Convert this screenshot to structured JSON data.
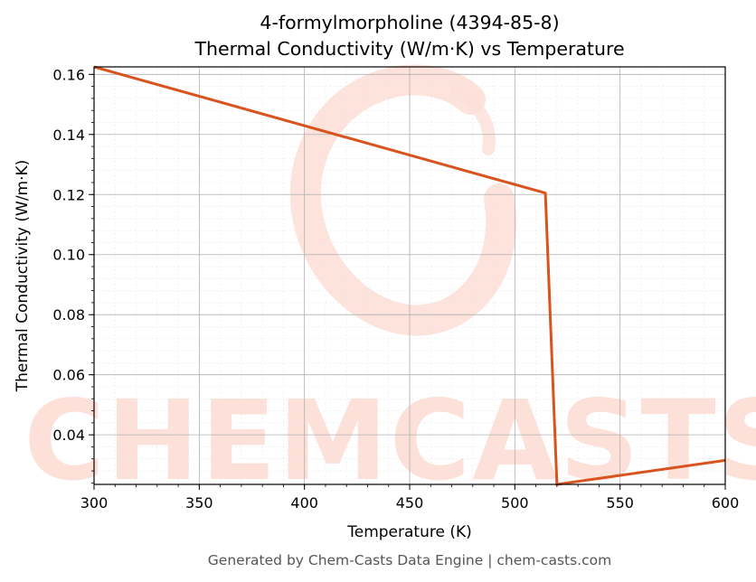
{
  "chart_data": {
    "type": "line",
    "title": "4-formylmorpholine (4394-85-8)",
    "subtitle": "Thermal Conductivity (W/m·K) vs Temperature",
    "xlabel": "Temperature (K)",
    "ylabel": "Thermal Conductivity (W/m·K)",
    "xlim": [
      300,
      600
    ],
    "ylim": [
      0.0235,
      0.1625
    ],
    "x_ticks": [
      300,
      350,
      400,
      450,
      500,
      550,
      600
    ],
    "x_tick_labels": [
      "300",
      "350",
      "400",
      "450",
      "500",
      "550",
      "600"
    ],
    "y_ticks": [
      0.04,
      0.06,
      0.08,
      0.1,
      0.12,
      0.14,
      0.16
    ],
    "y_tick_labels": [
      "0.04",
      "0.06",
      "0.08",
      "0.10",
      "0.12",
      "0.14",
      "0.16"
    ],
    "grid": true,
    "series": [
      {
        "color": "#d9531e",
        "x": [
          300,
          514.5,
          520.0,
          600
        ],
        "y": [
          0.1625,
          0.1205,
          0.0235,
          0.0315
        ]
      }
    ]
  },
  "watermark": {
    "text": "CHEMCASTS",
    "color": "#fde0d8"
  },
  "footer": "Generated by Chem-Casts Data Engine | chem-casts.com"
}
